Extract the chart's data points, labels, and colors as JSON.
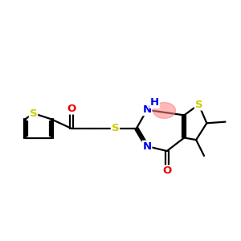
{
  "bg_color": "#ffffff",
  "bond_color": "#000000",
  "S_color": "#cccc00",
  "N_color": "#0000ee",
  "O_color": "#ee0000",
  "H_color": "#0000ee",
  "highlight_color": "#ff8080",
  "highlight_alpha": 0.55,
  "line_width": 1.6,
  "font_size": 9.5,
  "figsize": [
    3.0,
    3.0
  ],
  "dpi": 100,
  "xlim": [
    0.0,
    9.0
  ],
  "ylim": [
    1.5,
    6.8
  ]
}
